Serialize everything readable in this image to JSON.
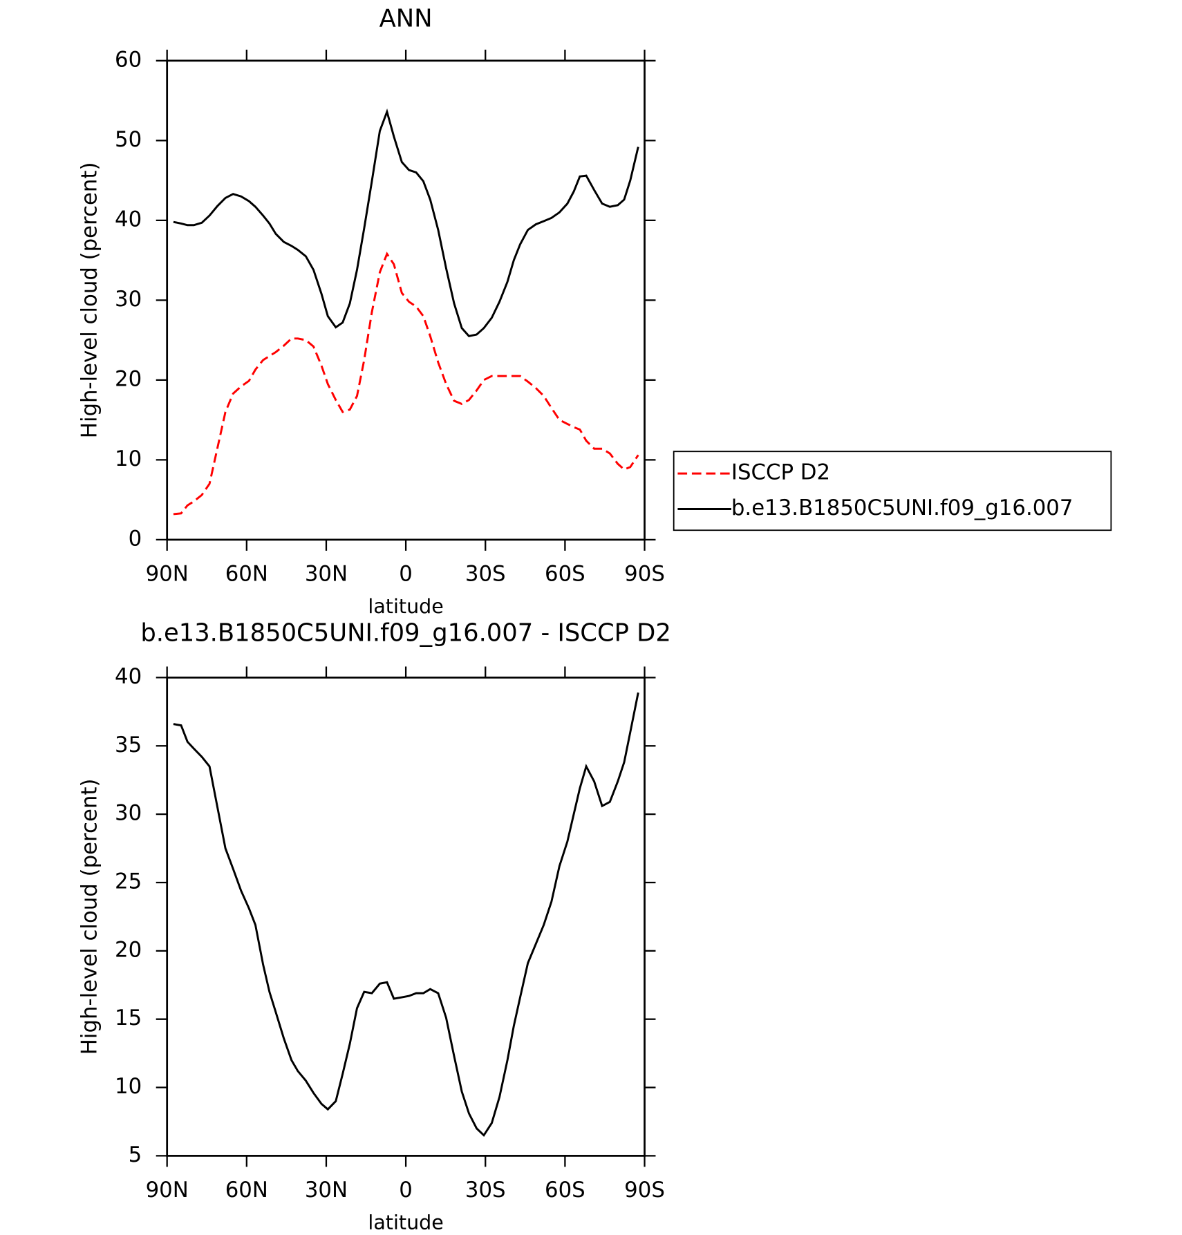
{
  "chart_data": [
    {
      "type": "line",
      "title": "ANN",
      "xlabel": "latitude",
      "ylabel": "High-level cloud (percent)",
      "x": [
        87.6,
        84.7,
        82.3,
        79.9,
        76.9,
        74.0,
        71.0,
        68.0,
        65.1,
        62.1,
        59.1,
        56.7,
        53.8,
        51.4,
        49.0,
        46.0,
        43.1,
        40.7,
        37.7,
        34.8,
        31.8,
        29.4,
        26.4,
        23.8,
        21.1,
        18.4,
        15.7,
        12.8,
        9.8,
        7.1,
        4.5,
        1.5,
        -1.2,
        -3.9,
        -6.6,
        -9.2,
        -12.2,
        -15.2,
        -18.2,
        -21.1,
        -23.8,
        -26.7,
        -29.4,
        -32.4,
        -35.3,
        -38.3,
        -40.7,
        -43.1,
        -46.0,
        -49.0,
        -52.0,
        -54.9,
        -57.9,
        -60.9,
        -63.3,
        -65.6,
        -68.0,
        -71.0,
        -74.0,
        -76.9,
        -79.9,
        -82.3,
        -84.6,
        -87.6
      ],
      "series": [
        {
          "name": "ISCCP D2",
          "color": "#ff0000",
          "line_style": "dashed",
          "values": [
            3.2,
            3.3,
            4.3,
            4.8,
            5.6,
            7.0,
            11.5,
            16.0,
            18.3,
            19.2,
            19.9,
            21.3,
            22.5,
            23.0,
            23.5,
            24.3,
            25.2,
            25.2,
            25.0,
            24.2,
            21.8,
            19.5,
            17.5,
            16.0,
            16.3,
            18.0,
            22.5,
            28.5,
            33.5,
            35.8,
            34.5,
            30.9,
            29.8,
            29.2,
            28.0,
            25.5,
            22.2,
            19.5,
            17.4,
            17.0,
            17.5,
            18.7,
            20.0,
            20.5,
            20.5,
            20.5,
            20.5,
            20.5,
            19.8,
            19.0,
            18.0,
            16.5,
            15.0,
            14.5,
            14.1,
            13.8,
            12.4,
            11.4,
            11.4,
            10.8,
            9.5,
            8.8,
            9.1,
            10.6
          ]
        },
        {
          "name": "b.e13.B1850C5UNI.f09_g16.007",
          "color": "#000000",
          "line_style": "solid",
          "values": [
            39.8,
            39.6,
            39.4,
            39.4,
            39.7,
            40.6,
            41.8,
            42.8,
            43.3,
            43.0,
            42.4,
            41.7,
            40.6,
            39.6,
            38.3,
            37.3,
            36.8,
            36.3,
            35.5,
            33.8,
            30.8,
            28.0,
            26.6,
            27.2,
            29.6,
            33.8,
            39.0,
            44.9,
            51.2,
            53.6,
            50.5,
            47.3,
            46.3,
            46.0,
            44.9,
            42.6,
            38.8,
            34.0,
            29.6,
            26.5,
            25.5,
            25.7,
            26.5,
            27.8,
            29.8,
            32.3,
            35.0,
            37.0,
            38.8,
            39.5,
            39.9,
            40.3,
            41.0,
            42.1,
            43.6,
            45.5,
            45.6,
            43.8,
            42.1,
            41.7,
            41.9,
            42.6,
            45.0,
            49.2
          ]
        }
      ],
      "xlim": [
        90,
        -90
      ],
      "xticks": [
        {
          "value": 90,
          "label": "90N"
        },
        {
          "value": 60,
          "label": "60N"
        },
        {
          "value": 30,
          "label": "30N"
        },
        0,
        {
          "value": -30,
          "label": "30S"
        },
        {
          "value": -60,
          "label": "60S"
        },
        {
          "value": -90,
          "label": "90S"
        }
      ],
      "ylim": [
        0,
        60
      ],
      "yticks": [
        0,
        10,
        20,
        30,
        40,
        50,
        60
      ],
      "legend": "right"
    },
    {
      "type": "line",
      "title": "b.e13.B1850C5UNI.f09_g16.007 - ISCCP D2",
      "xlabel": "latitude",
      "ylabel": "High-level cloud (percent)",
      "x": [
        87.6,
        84.7,
        82.3,
        79.9,
        76.9,
        74.0,
        71.0,
        68.0,
        65.1,
        62.1,
        59.1,
        56.7,
        53.8,
        51.4,
        49.0,
        46.0,
        43.1,
        40.7,
        37.7,
        34.8,
        31.8,
        29.4,
        26.4,
        23.8,
        21.1,
        18.4,
        15.7,
        12.8,
        9.8,
        7.1,
        4.5,
        1.5,
        -1.2,
        -3.9,
        -6.6,
        -9.2,
        -12.2,
        -15.2,
        -18.2,
        -21.1,
        -23.8,
        -26.7,
        -29.4,
        -32.4,
        -35.3,
        -38.3,
        -40.7,
        -43.1,
        -46.0,
        -49.0,
        -52.0,
        -54.9,
        -57.9,
        -60.9,
        -63.3,
        -65.6,
        -68.0,
        -71.0,
        -74.0,
        -76.9,
        -79.9,
        -82.3,
        -84.6,
        -87.6
      ],
      "series": [
        {
          "color": "#000000",
          "line_style": "solid",
          "values": [
            36.6,
            36.5,
            35.3,
            34.8,
            34.2,
            33.5,
            30.5,
            27.5,
            26.0,
            24.4,
            23.1,
            21.9,
            19.0,
            17.0,
            15.5,
            13.6,
            12.0,
            11.2,
            10.5,
            9.6,
            8.8,
            8.4,
            9.0,
            11.0,
            13.2,
            15.8,
            17.0,
            16.9,
            17.6,
            17.7,
            16.5,
            16.6,
            16.7,
            16.9,
            16.9,
            17.2,
            16.9,
            15.1,
            12.3,
            9.7,
            8.1,
            7.0,
            6.5,
            7.4,
            9.3,
            12.0,
            14.5,
            16.6,
            19.1,
            20.5,
            21.9,
            23.6,
            26.2,
            28.0,
            30.0,
            31.9,
            33.5,
            32.4,
            30.6,
            30.9,
            32.4,
            33.8,
            36.0,
            38.9
          ]
        }
      ],
      "xlim": [
        90,
        -90
      ],
      "xticks": [
        {
          "value": 90,
          "label": "90N"
        },
        {
          "value": 60,
          "label": "60N"
        },
        {
          "value": 30,
          "label": "30N"
        },
        0,
        {
          "value": -30,
          "label": "30S"
        },
        {
          "value": -60,
          "label": "60S"
        },
        {
          "value": -90,
          "label": "90S"
        }
      ],
      "ylim": [
        5,
        40
      ],
      "yticks": [
        5,
        10,
        15,
        20,
        25,
        30,
        35,
        40
      ]
    }
  ]
}
